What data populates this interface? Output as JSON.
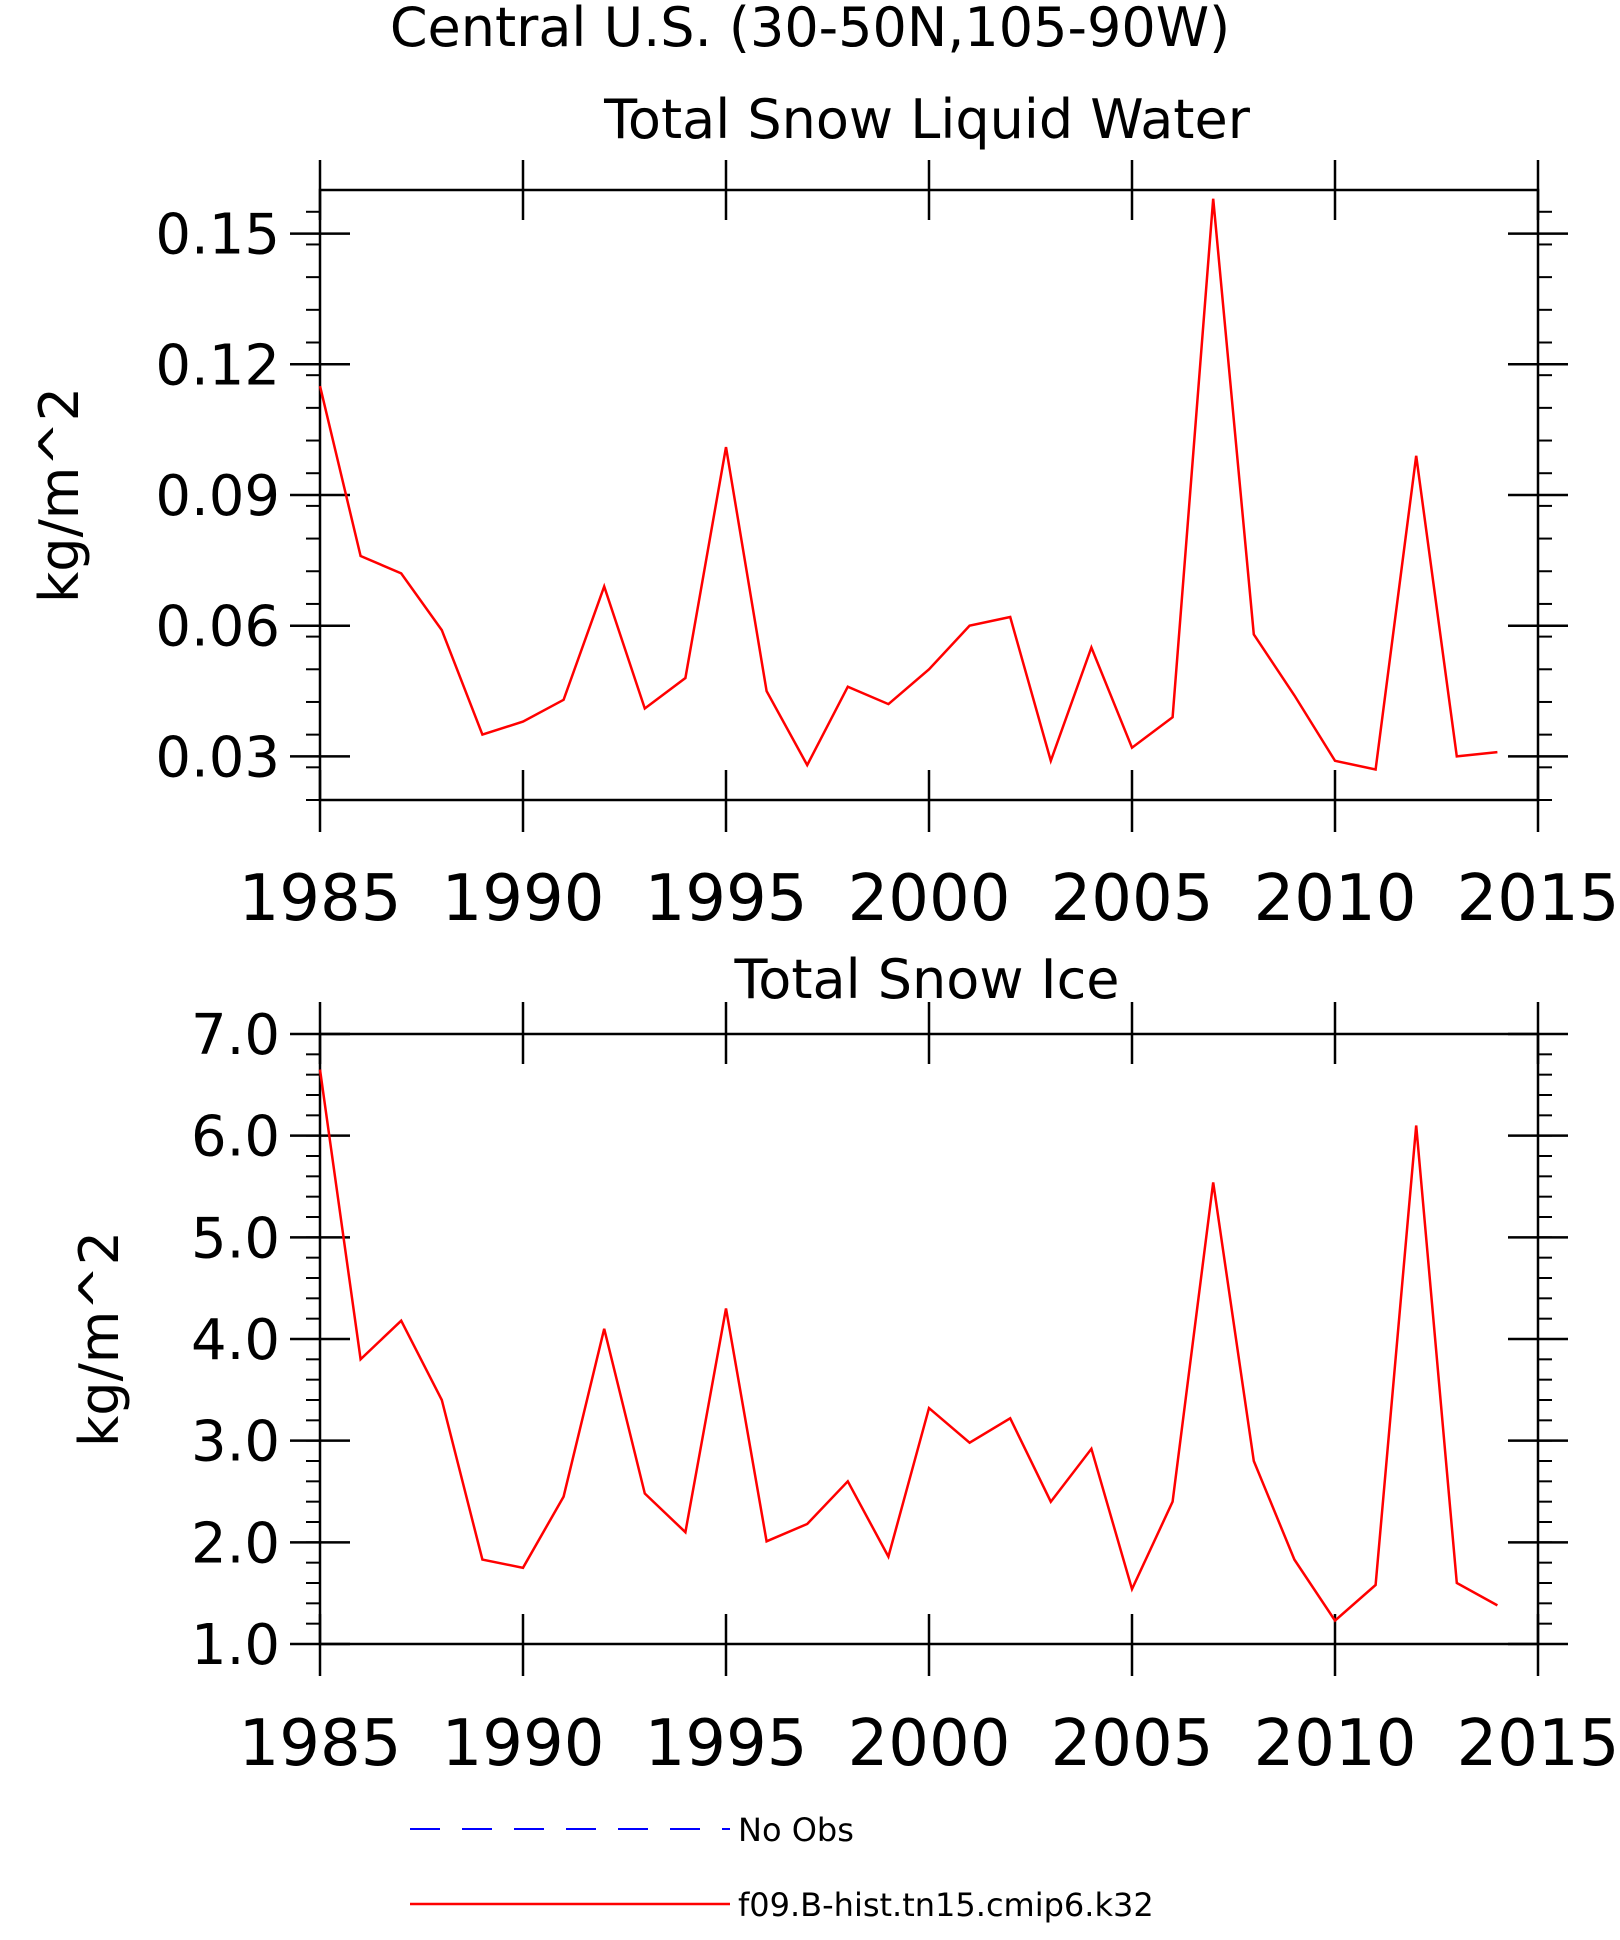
{
  "figure": {
    "title": "Central U.S. (30-50N,105-90W)"
  },
  "chart_data": [
    {
      "type": "line",
      "title": "Total Snow Liquid Water",
      "xlabel": "",
      "ylabel": "kg/m^2",
      "xlim": [
        1985,
        2015
      ],
      "ylim": [
        0.02,
        0.16
      ],
      "x_ticks": [
        "1985",
        "1990",
        "1995",
        "2000",
        "2005",
        "2010",
        "2015"
      ],
      "y_ticks": [
        "0.03",
        "0.06",
        "0.09",
        "0.12",
        "0.15"
      ],
      "grid": false,
      "series": [
        {
          "name": "f09.B-hist.tn15.cmip6.k32",
          "color": "#ff0000",
          "x": [
            1985,
            1986,
            1987,
            1988,
            1989,
            1990,
            1991,
            1992,
            1993,
            1994,
            1995,
            1996,
            1997,
            1998,
            1999,
            2000,
            2001,
            2002,
            2003,
            2004,
            2005,
            2006,
            2007,
            2008,
            2009,
            2010,
            2011,
            2012,
            2013,
            2014
          ],
          "values": [
            0.115,
            0.076,
            0.072,
            0.059,
            0.035,
            0.038,
            0.043,
            0.069,
            0.041,
            0.048,
            0.101,
            0.045,
            0.028,
            0.046,
            0.042,
            0.05,
            0.06,
            0.062,
            0.029,
            0.055,
            0.032,
            0.039,
            0.158,
            0.058,
            0.044,
            0.029,
            0.027,
            0.099,
            0.03,
            0.031
          ]
        }
      ]
    },
    {
      "type": "line",
      "title": "Total Snow Ice",
      "xlabel": "",
      "ylabel": "kg/m^2",
      "xlim": [
        1985,
        2015
      ],
      "ylim": [
        1.0,
        7.0
      ],
      "x_ticks": [
        "1985",
        "1990",
        "1995",
        "2000",
        "2005",
        "2010",
        "2015"
      ],
      "y_ticks": [
        "1.0",
        "2.0",
        "3.0",
        "4.0",
        "5.0",
        "6.0",
        "7.0"
      ],
      "grid": false,
      "series": [
        {
          "name": "f09.B-hist.tn15.cmip6.k32",
          "color": "#ff0000",
          "x": [
            1985,
            1986,
            1987,
            1988,
            1989,
            1990,
            1991,
            1992,
            1993,
            1994,
            1995,
            1996,
            1997,
            1998,
            1999,
            2000,
            2001,
            2002,
            2003,
            2004,
            2005,
            2006,
            2007,
            2008,
            2009,
            2010,
            2011,
            2012,
            2013,
            2014
          ],
          "values": [
            6.65,
            3.8,
            4.18,
            3.4,
            1.83,
            1.75,
            2.45,
            4.1,
            2.48,
            2.1,
            4.3,
            2.01,
            2.18,
            2.6,
            1.86,
            3.32,
            2.98,
            3.22,
            2.4,
            2.92,
            1.54,
            2.4,
            5.54,
            2.8,
            1.83,
            1.23,
            1.58,
            6.1,
            1.6,
            1.38
          ]
        }
      ]
    }
  ],
  "legend": {
    "placement": "bottom",
    "entries": [
      {
        "label": "No Obs",
        "color": "#0000ff",
        "style": "dashed"
      },
      {
        "label": "f09.B-hist.tn15.cmip6.k32",
        "color": "#ff0000",
        "style": "solid"
      }
    ]
  }
}
